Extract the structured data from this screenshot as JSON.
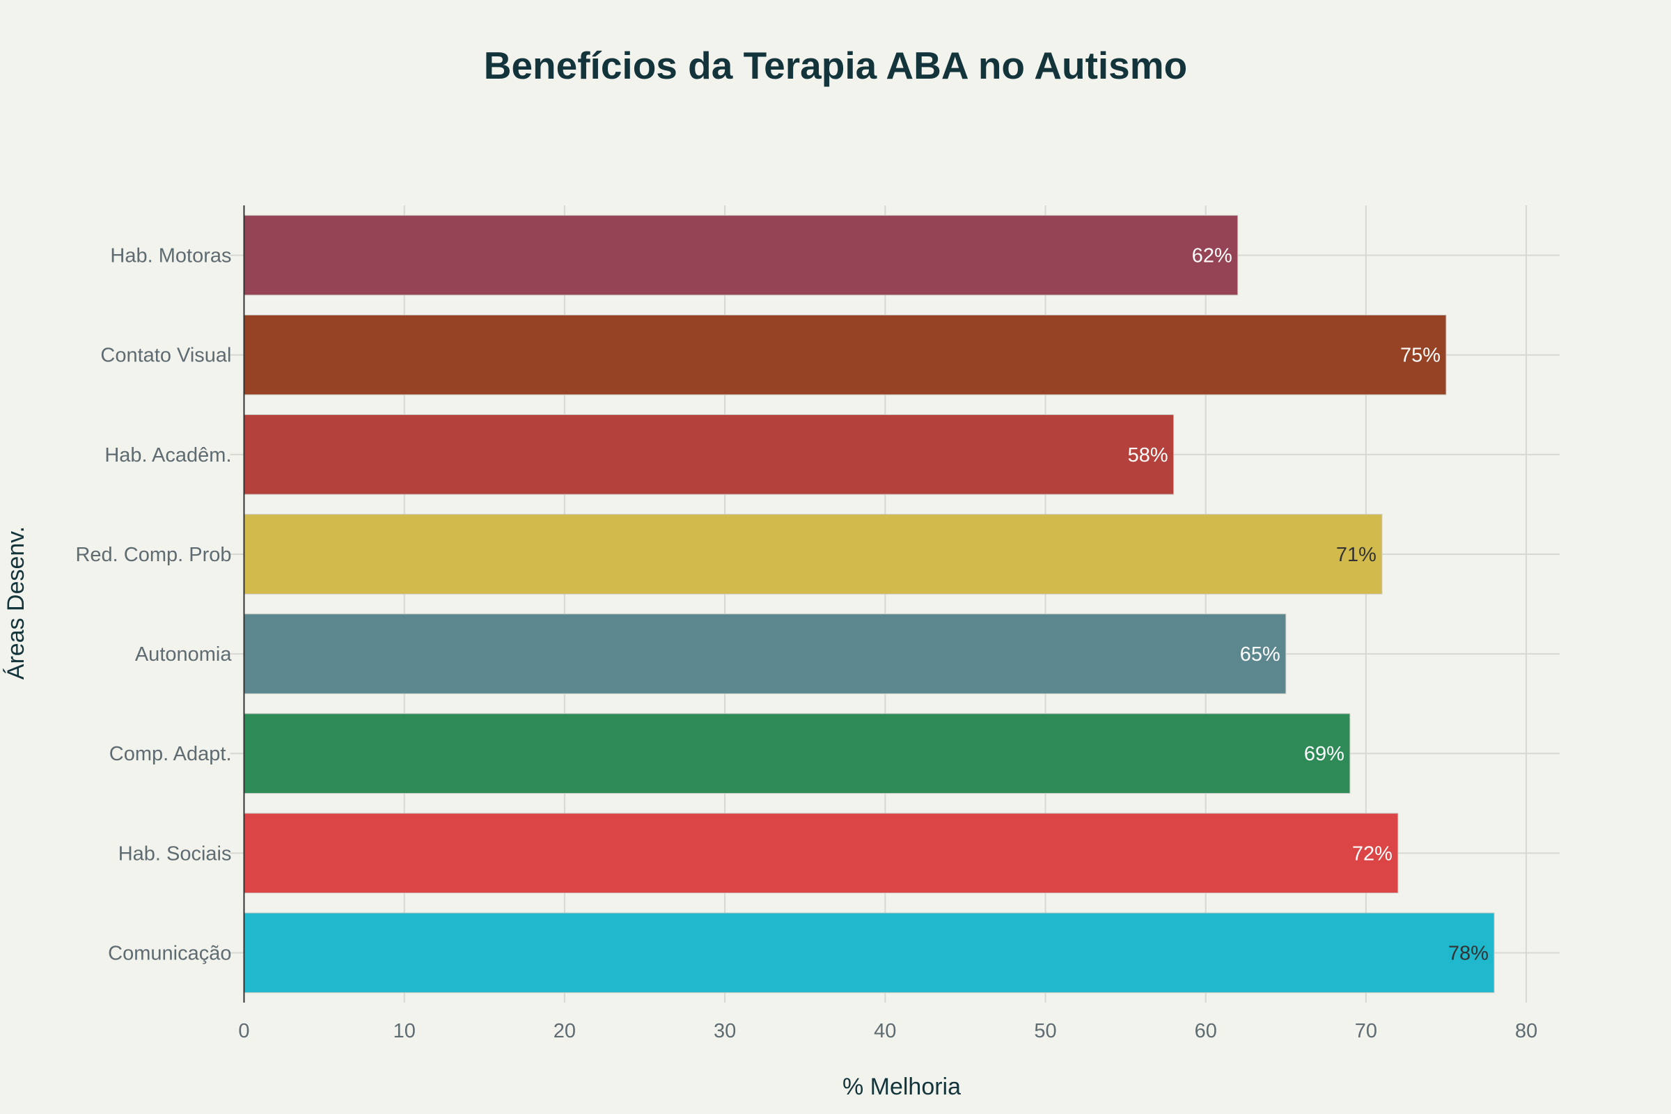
{
  "chart_data": {
    "type": "bar",
    "orientation": "horizontal",
    "title": "Benefícios da Terapia ABA no Autismo",
    "xlabel": "% Melhoria",
    "ylabel": "Áreas Desenv.",
    "xlim": [
      0,
      82
    ],
    "xticks": [
      0,
      10,
      20,
      30,
      40,
      50,
      60,
      70,
      80
    ],
    "grid": true,
    "categories": [
      "Comunicação",
      "Hab. Sociais",
      "Comp. Adapt.",
      "Autonomia",
      "Red. Comp. Prob",
      "Hab. Acadêm.",
      "Contato Visual",
      "Hab. Motoras"
    ],
    "values": [
      78,
      72,
      69,
      65,
      71,
      58,
      75,
      62
    ],
    "data_labels": [
      "78%",
      "72%",
      "69%",
      "65%",
      "71%",
      "58%",
      "75%",
      "62%"
    ],
    "colors": [
      "#1FB8CD",
      "#DB4545",
      "#2E8B57",
      "#5D878F",
      "#D2BA4C",
      "#B4413C",
      "#964325",
      "#944454"
    ],
    "label_colors": [
      "#333333",
      "#FFFFFF",
      "#FFFFFF",
      "#FFFFFF",
      "#333333",
      "#FFFFFF",
      "#FFFFFF",
      "#FFFFFF"
    ]
  }
}
